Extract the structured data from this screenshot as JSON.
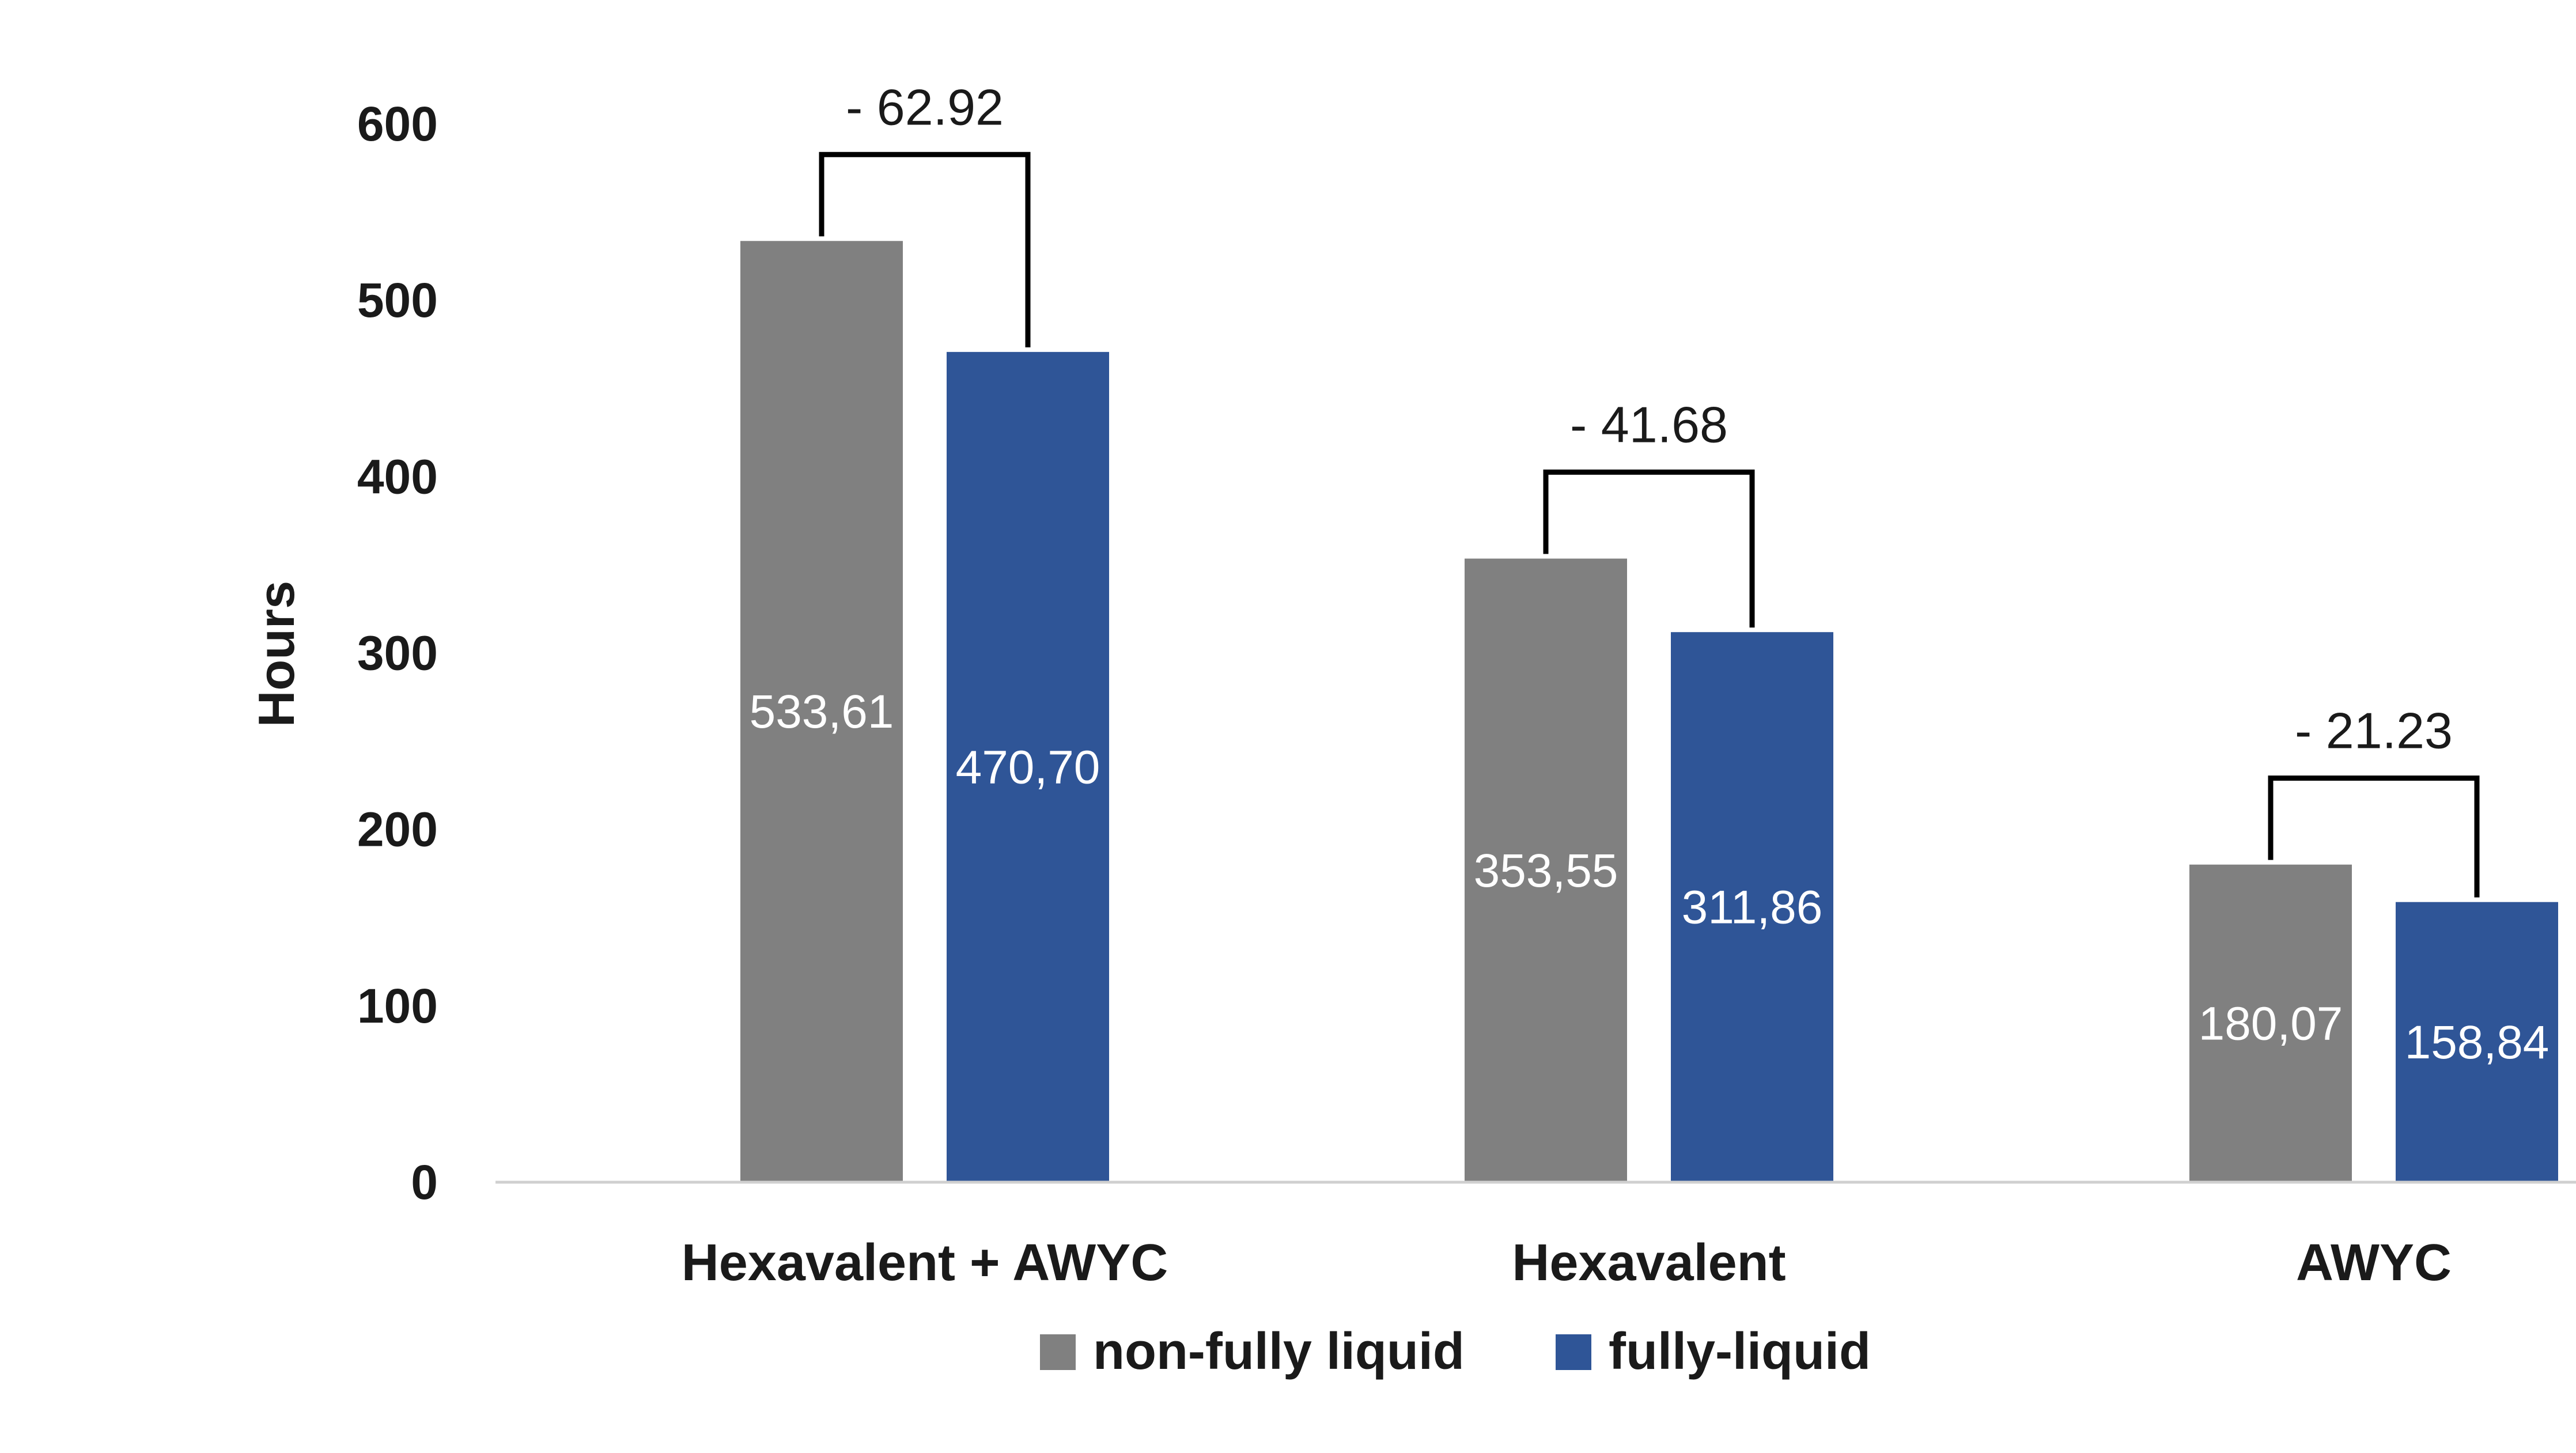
{
  "chart_data": {
    "type": "bar",
    "ylabel": "Hours",
    "ylim": [
      0,
      600
    ],
    "yticks": [
      "0",
      "100",
      "200",
      "300",
      "400",
      "500",
      "600"
    ],
    "categories": [
      "Hexavalent + AWYC",
      "Hexavalent",
      "AWYC"
    ],
    "series": [
      {
        "name": "non-fully liquid",
        "color": "#808080",
        "values": [
          533.61,
          353.55,
          180.07
        ],
        "labels": [
          "533,61",
          "353,55",
          "180,07"
        ]
      },
      {
        "name": "fully-liquid",
        "color": "#2F5597",
        "values": [
          470.7,
          311.86,
          158.84
        ],
        "labels": [
          "470,70",
          "311,86",
          "158,84"
        ]
      }
    ],
    "annotations": [
      "- 62.92",
      "- 41.68",
      "- 21.23"
    ],
    "grid": false,
    "legend_position": "bottom"
  }
}
